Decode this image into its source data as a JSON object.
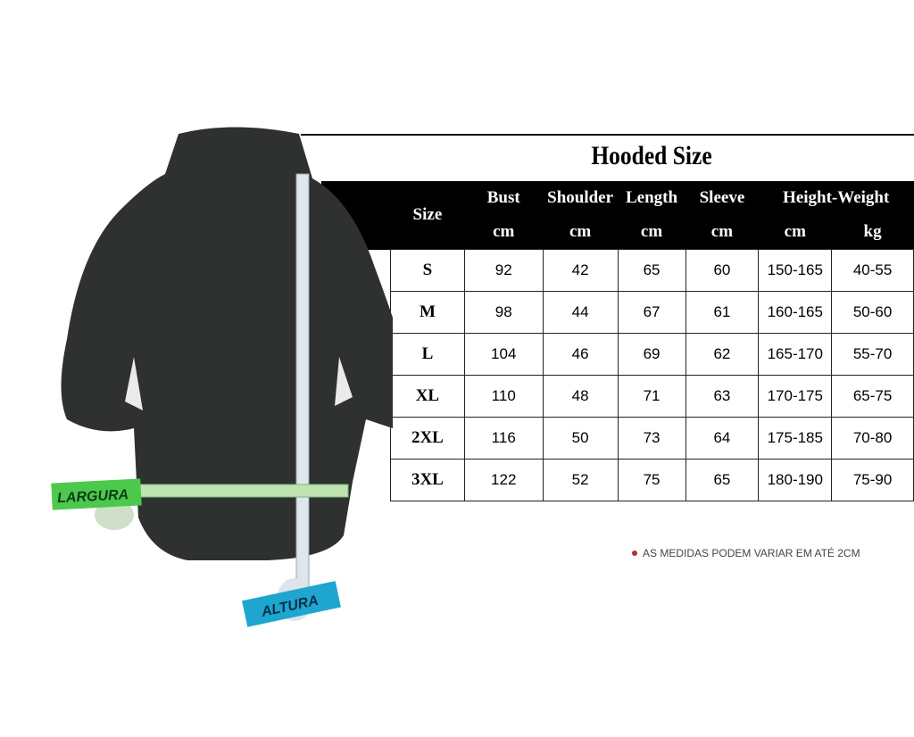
{
  "title": "Hooded Size",
  "headers": {
    "size": "Size",
    "bust": "Bust",
    "shoulder": "Shoulder",
    "length": "Length",
    "sleeve": "Sleeve",
    "height_weight": "Height-Weight"
  },
  "units": [
    "cm",
    "cm",
    "cm",
    "cm",
    "cm",
    "kg"
  ],
  "rows": [
    [
      "S",
      "92",
      "42",
      "65",
      "60",
      "150-165",
      "40-55"
    ],
    [
      "M",
      "98",
      "44",
      "67",
      "61",
      "160-165",
      "50-60"
    ],
    [
      "L",
      "104",
      "46",
      "69",
      "62",
      "165-170",
      "55-70"
    ],
    [
      "XL",
      "110",
      "48",
      "71",
      "63",
      "170-175",
      "65-75"
    ],
    [
      "2XL",
      "116",
      "50",
      "73",
      "64",
      "175-185",
      "70-80"
    ],
    [
      "3XL",
      "122",
      "52",
      "75",
      "65",
      "180-190",
      "75-90"
    ]
  ],
  "note": "AS MEDIDAS PODEM VARIAR EM ATÉ 2CM",
  "labels": {
    "width": "LARGURA",
    "height": "ALTURA"
  },
  "colors": {
    "hoodie": "#2e3130",
    "width_tape": "#4cc94c",
    "height_tape": "#1ea6d0",
    "note_dot": "#a33333"
  }
}
